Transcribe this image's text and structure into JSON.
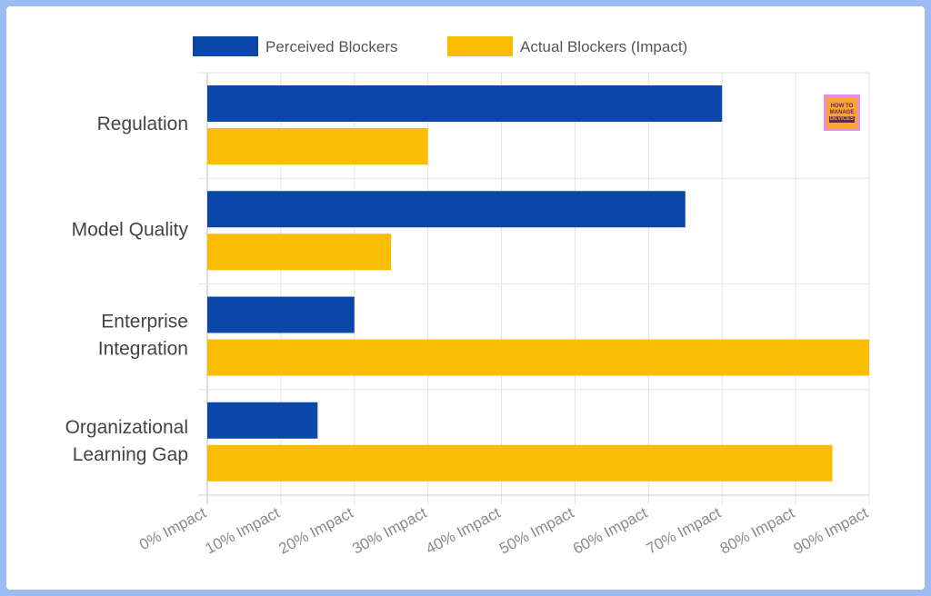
{
  "chart_data": {
    "type": "bar",
    "orientation": "horizontal",
    "categories": [
      [
        "Regulation"
      ],
      [
        "Model Quality"
      ],
      [
        "Enterprise",
        "Integration"
      ],
      [
        "Organizational",
        "Learning Gap"
      ]
    ],
    "series": [
      {
        "name": "Perceived Blockers",
        "color": "#0b47a9",
        "values": [
          70,
          65,
          20,
          15
        ]
      },
      {
        "name": "Actual Blockers (Impact)",
        "color": "#fbbc04",
        "values": [
          30,
          25,
          90,
          85
        ]
      }
    ],
    "x_ticks": [
      0,
      10,
      20,
      30,
      40,
      50,
      60,
      70,
      80,
      90
    ],
    "x_tick_labels": [
      "0% Impact",
      "10% Impact",
      "20% Impact",
      "30% Impact",
      "40% Impact",
      "50% Impact",
      "60% Impact",
      "70% Impact",
      "80% Impact",
      "90% Impact"
    ],
    "xlim": [
      0,
      90
    ],
    "grid": true,
    "legend_position": "top"
  },
  "logo": {
    "line1": "HOW TO",
    "line2": "MANAGE",
    "line3": "DEVICES"
  }
}
